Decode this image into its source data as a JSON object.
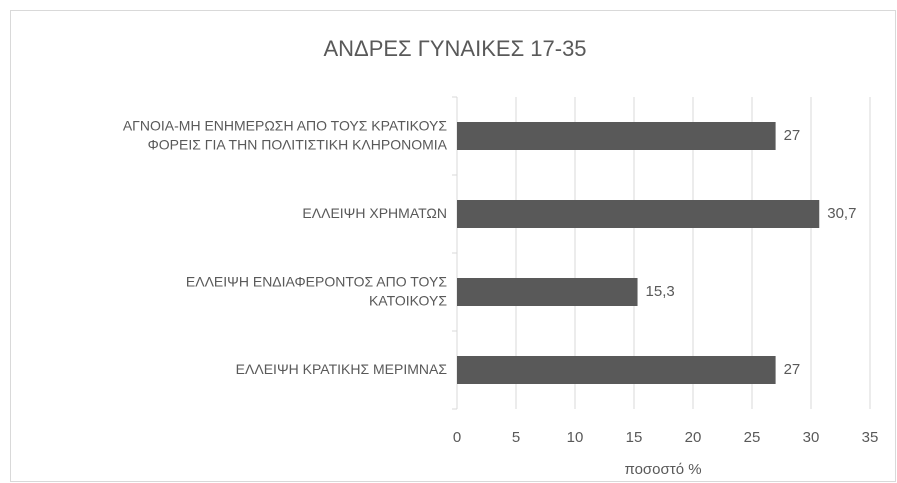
{
  "chart_data": {
    "type": "bar",
    "orientation": "horizontal",
    "title": "ΑΝΔΡΕΣ ΓΥΝΑΙΚΕΣ 17-35",
    "x_label": "ποσοστό %",
    "categories": [
      "ΑΓΝΟΙΑ-ΜΗ ΕΝΗΜΕΡΩΣΗ ΑΠΟ ΤΟΥΣ ΚΡΑΤΙΚΟΥΣ\nΦΟΡΕΙΣ ΓΙΑ ΤΗΝ ΠΟΛΙΤΙΣΤΙΚΗ ΚΛΗΡΟΝΟΜΙΑ",
      "ΕΛΛΕΙΨΗ ΧΡΗΜΑΤΩΝ",
      "ΕΛΛΕΙΨΗ ΕΝΔΙΑΦΕΡΟΝΤΟΣ ΑΠΟ ΤΟΥΣ\nΚΑΤΟΙΚΟΥΣ",
      "ΕΛΛΕΙΨΗ ΚΡΑΤΙΚΗΣ ΜΕΡΙΜΝΑΣ"
    ],
    "values": [
      27,
      30.7,
      15.3,
      27
    ],
    "value_labels": [
      "27",
      "30,7",
      "15,3",
      "27"
    ],
    "color": "#595959",
    "xlim": [
      0,
      35
    ],
    "xticks": [
      0,
      5,
      10,
      15,
      20,
      25,
      30,
      35
    ],
    "grid": true
  }
}
